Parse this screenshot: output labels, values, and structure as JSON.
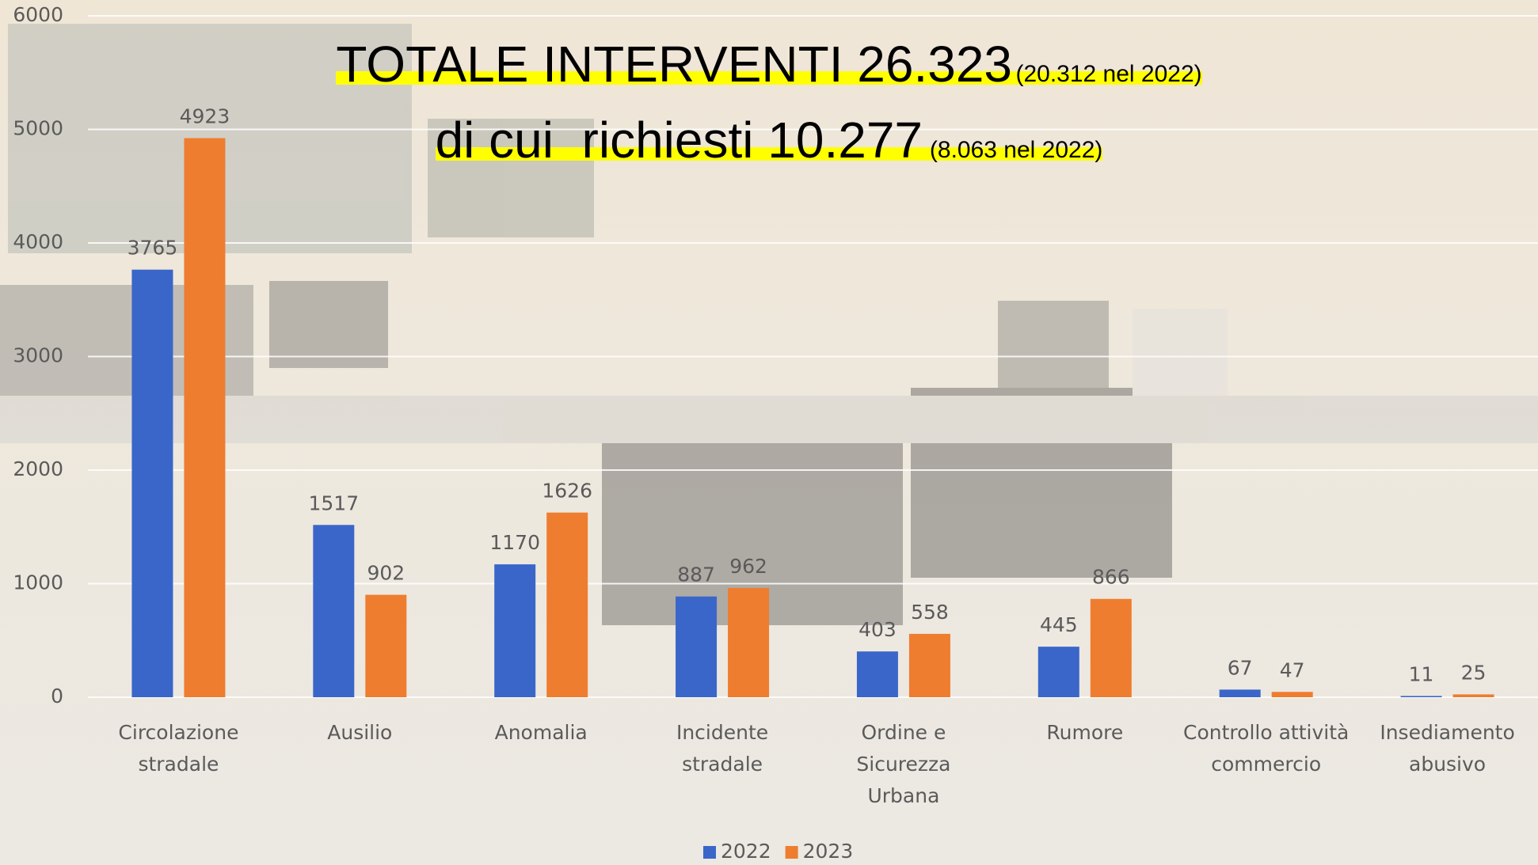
{
  "chart_data": {
    "type": "bar",
    "title": "TOTALE INTERVENTI 26.323",
    "title_note": "(20.312 nel 2022)",
    "subtitle": "di cui  richiesti 10.277",
    "subtitle_note": "(8.063 nel 2022)",
    "categories": [
      "Circolazione\nstradale",
      "Ausilio",
      "Anomalia",
      "Incidente\nstradale",
      "Ordine e\nSicurezza\nUrbana",
      "Rumore",
      "Controllo attività\ncommercio",
      "Insediamento\nabusivo"
    ],
    "series": [
      {
        "name": "2022",
        "color": "#3a66c9",
        "values": [
          3765,
          1517,
          1170,
          887,
          403,
          445,
          67,
          11
        ]
      },
      {
        "name": "2023",
        "color": "#ee7d30",
        "values": [
          4923,
          902,
          1626,
          962,
          558,
          866,
          47,
          25
        ]
      }
    ],
    "ylim": [
      0,
      6000
    ],
    "yticks": [
      0,
      1000,
      2000,
      3000,
      4000,
      5000,
      6000
    ],
    "grid": true,
    "legend": "bottom"
  }
}
